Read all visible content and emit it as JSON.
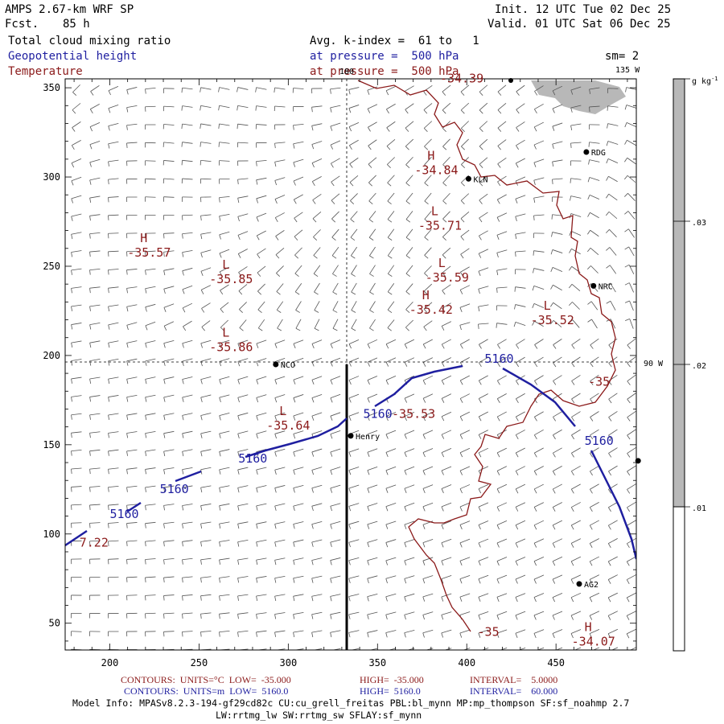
{
  "header": {
    "model": "AMPS 2.67-km WRF SP",
    "fcst_label": "Fcst.",
    "fcst_value": "85 h",
    "init": "Init. 12 UTC Tue 02 Dec 25",
    "valid": "Valid. 01 UTC Sat 06 Dec 25",
    "field_shaded": "Total cloud mixing ratio",
    "field_contour1": "Geopotential height",
    "field_contour2": "Temperature",
    "avg_kindex": "Avg. k-index =  61 to   1",
    "pressure1": "at pressure =  500 hPa",
    "pressure2": "at pressure =  500 hPa",
    "smoothing": "sm= 2"
  },
  "colors": {
    "height_contour": "#1f1fa0",
    "temperature_contour": "#8b1a1a",
    "cloud_shade": "#b8b8b8"
  },
  "map": {
    "lon_labels": {
      "top_180": "180",
      "top_135w": "135 W",
      "right_90w": "90 W"
    },
    "x_ticks": [
      "200",
      "250",
      "300",
      "350",
      "400",
      "450"
    ],
    "y_ticks": [
      "350",
      "300",
      "250",
      "200",
      "150",
      "100",
      "50"
    ],
    "stations": [
      {
        "id": "RDG",
        "x": 467,
        "y": 314
      },
      {
        "id": "KLN",
        "x": 401,
        "y": 299
      },
      {
        "id": "NRC",
        "x": 471,
        "y": 239
      },
      {
        "id": "NCO",
        "x": 293,
        "y": 195
      },
      {
        "id": "Henry",
        "x": 335,
        "y": 155
      },
      {
        "id": "AG2",
        "x": 463,
        "y": 72
      },
      {
        "id": "",
        "x": 496,
        "y": 141
      }
    ],
    "pressure_centers": [
      {
        "type": "H",
        "value": "-35.57",
        "x": 217,
        "y": 260
      },
      {
        "type": "L",
        "value": "-35.85",
        "x": 263,
        "y": 245
      },
      {
        "type": "L",
        "value": "-35.86",
        "x": 263,
        "y": 207
      },
      {
        "type": "L",
        "value": "-35.64",
        "x": 295,
        "y": 163
      },
      {
        "type": "H",
        "value": "-34.84",
        "x": 378,
        "y": 306
      },
      {
        "type": "L",
        "value": "-35.71",
        "x": 380,
        "y": 275
      },
      {
        "type": "L",
        "value": "-35.59",
        "x": 384,
        "y": 246
      },
      {
        "type": "H",
        "value": "-35.42",
        "x": 375,
        "y": 228
      },
      {
        "type": "L",
        "value": "-35.52",
        "x": 443,
        "y": 222
      },
      {
        "type": "H",
        "value": "-34.07",
        "x": 466,
        "y": 42
      }
    ],
    "temperature_labels": [
      {
        "text": "-34.39",
        "x": 385,
        "y": 353
      },
      {
        "text": "-35.53",
        "x": 358,
        "y": 165
      },
      {
        "text": "-35",
        "x": 468,
        "y": 183
      },
      {
        "text": "-35",
        "x": 406,
        "y": 43
      },
      {
        "text": "7.22",
        "x": 183,
        "y": 93
      }
    ],
    "height_labels": [
      {
        "text": "5160",
        "x": 200,
        "y": 109
      },
      {
        "text": "5160",
        "x": 228,
        "y": 123
      },
      {
        "text": "5160",
        "x": 272,
        "y": 140
      },
      {
        "text": "5160",
        "x": 342,
        "y": 165
      },
      {
        "text": "5160",
        "x": 410,
        "y": 196
      },
      {
        "text": "5160",
        "x": 466,
        "y": 150
      }
    ]
  },
  "colorbar": {
    "unit": "g kg",
    "unit_sup": "-1",
    "labels": [
      ".03",
      ".02",
      ".01"
    ]
  },
  "footer": {
    "red_contours": "CONTOURS:  UNITS=°C  LOW=  -35.000",
    "red_high": "HIGH=  -35.000",
    "red_interval": "INTERVAL=    5.0000",
    "blue_contours": "CONTOURS:  UNITS=m  LOW=  5160.0",
    "blue_high": "HIGH=  5160.0",
    "blue_interval": "INTERVAL=    60.000",
    "model_info": "Model Info: MPASv8.2.3-194-gf29cd82c CU:cu_grell_freitas PBL:bl_mynn MP:mp_thompson SF:sf_noahmp 2.7",
    "model_info2": "LW:rrtmg_lw SW:rrtmg_sw SFLAY:sf_mynn"
  }
}
